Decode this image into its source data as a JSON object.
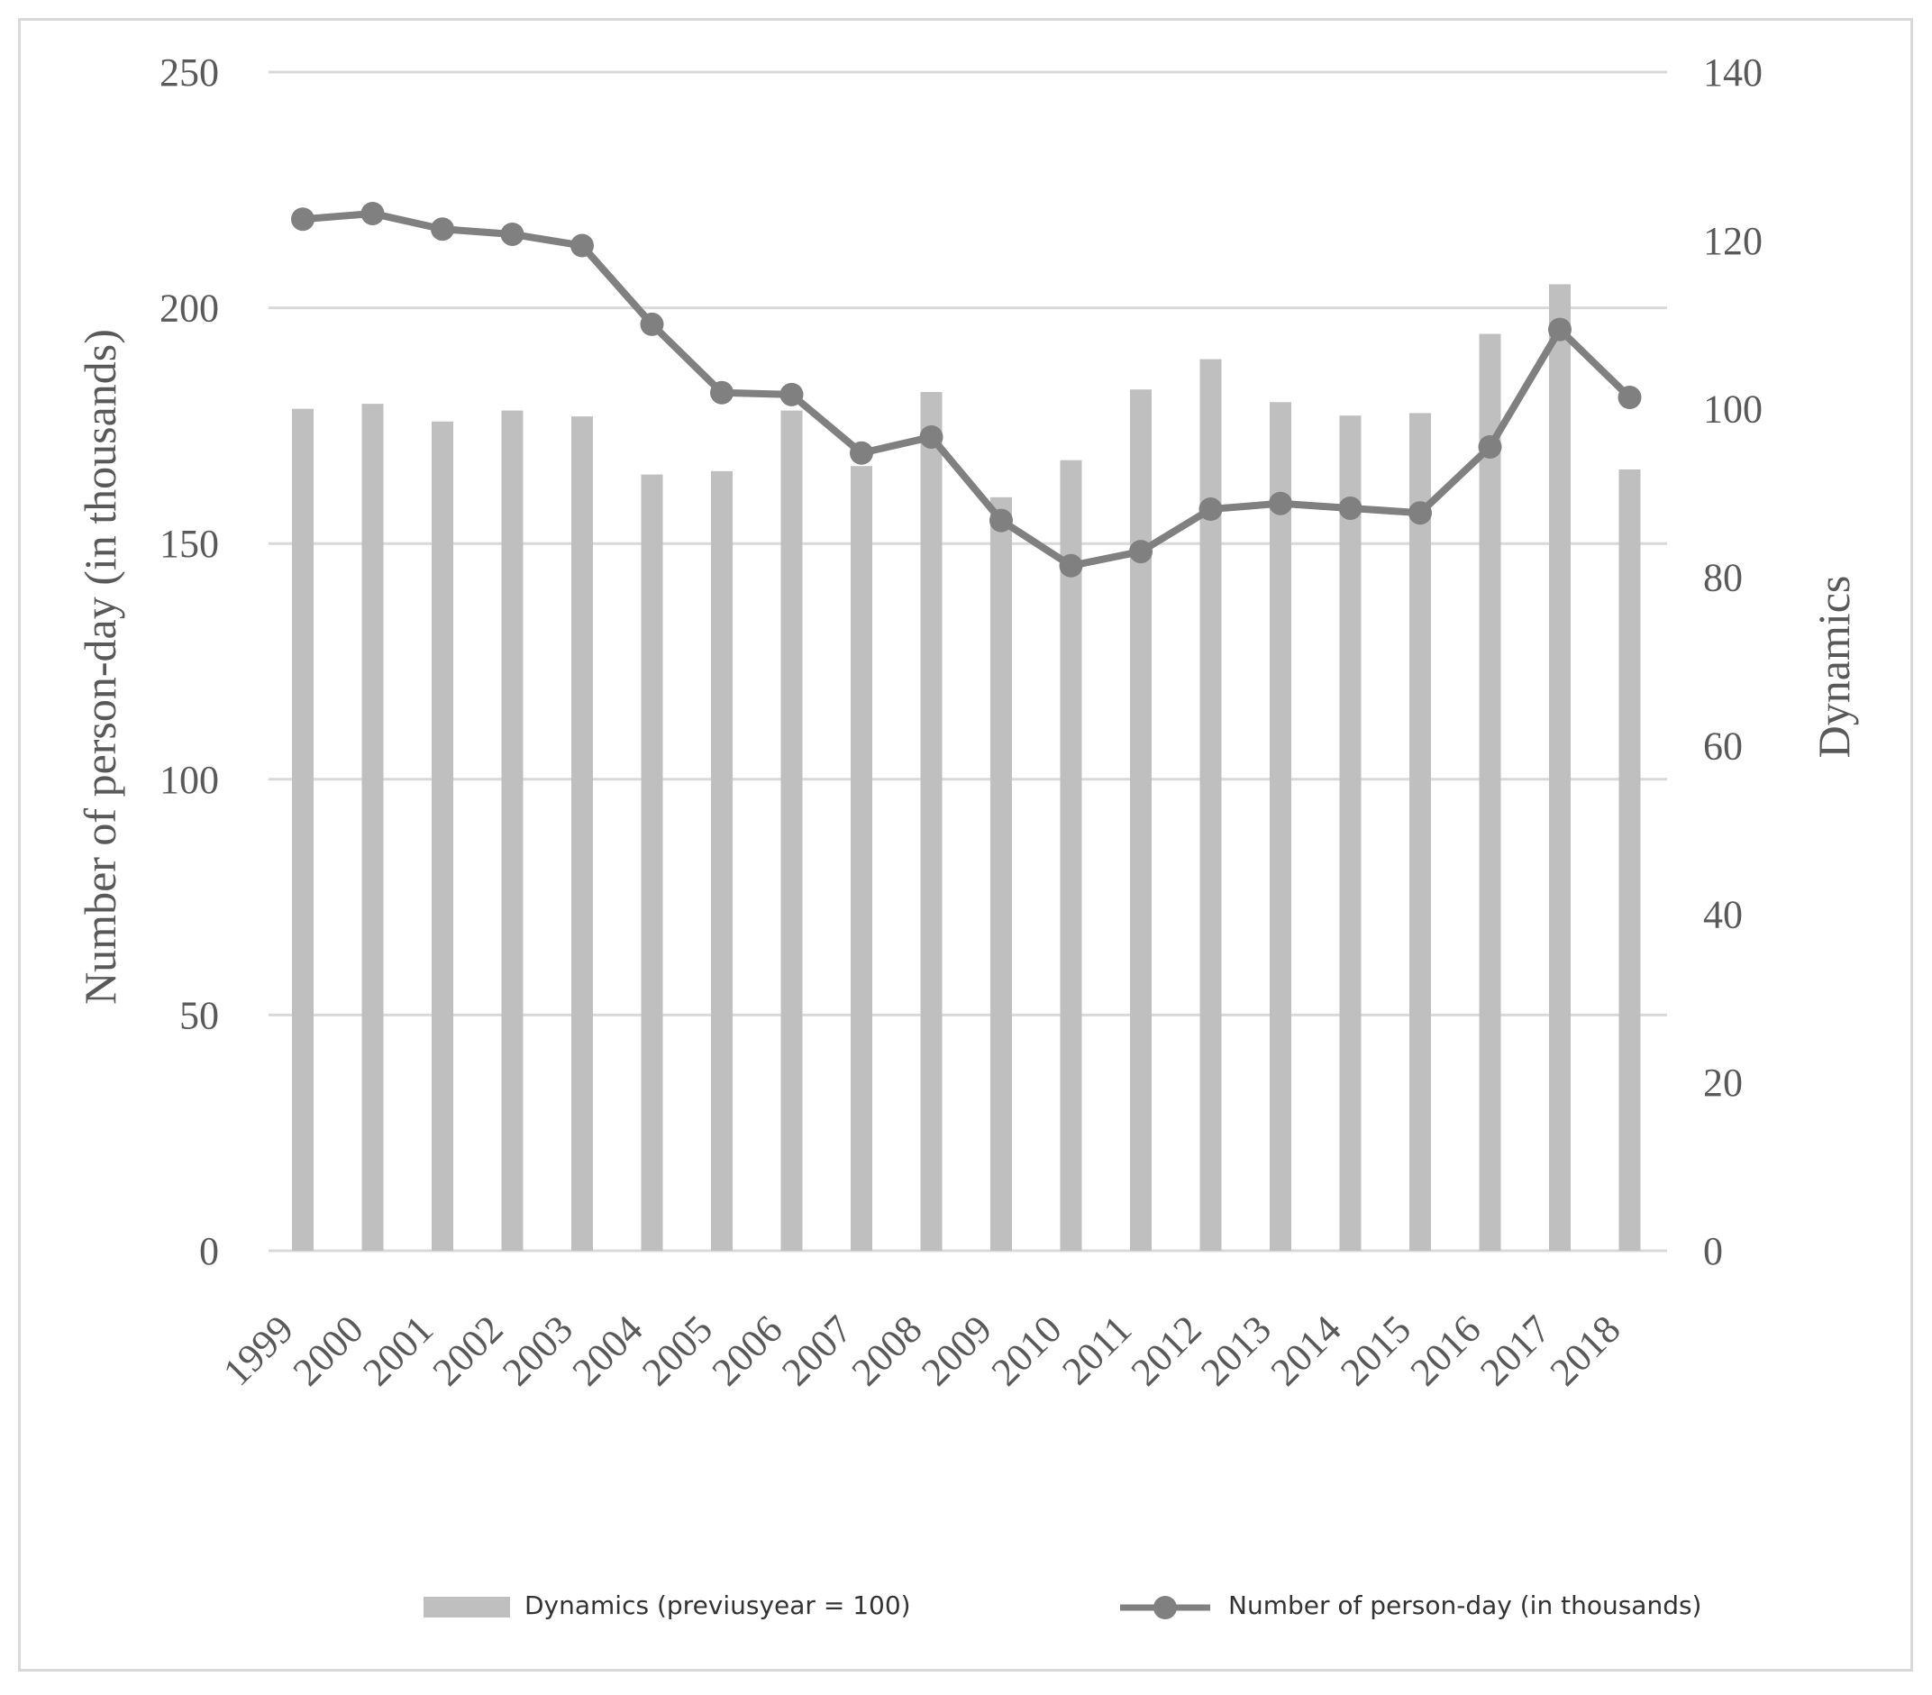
{
  "colors": {
    "bar": "#bfbfbf",
    "line": "#808080",
    "grid": "#d9d9d9",
    "text": "#595959"
  },
  "chart_data": {
    "type": "bar+line",
    "categories": [
      "1999",
      "2000",
      "2001",
      "2002",
      "2003",
      "2004",
      "2005",
      "2006",
      "2007",
      "2008",
      "2009",
      "2010",
      "2011",
      "2012",
      "2013",
      "2014",
      "2015",
      "2016",
      "2017",
      "2018"
    ],
    "series": [
      {
        "name": "Dynamics (previusyear = 100)",
        "type": "bar",
        "axis": "right",
        "values": [
          100.0,
          100.6,
          98.5,
          99.8,
          99.1,
          92.2,
          92.6,
          99.8,
          93.2,
          102.0,
          89.5,
          93.9,
          102.3,
          105.9,
          100.8,
          99.2,
          99.5,
          108.9,
          114.8,
          92.8
        ]
      },
      {
        "name": "Number of person-day (in thousands)",
        "type": "line",
        "axis": "left",
        "values": [
          218.8,
          220.0,
          216.7,
          215.6,
          213.2,
          196.5,
          182.0,
          181.6,
          169.2,
          172.6,
          154.9,
          145.3,
          148.3,
          157.3,
          158.5,
          157.5,
          156.5,
          170.5,
          195.4,
          181.0
        ]
      }
    ],
    "ylabel_left": "Number of person-day (in thousands)",
    "ylabel_right": "Dynamics",
    "ylim_left": [
      0,
      250
    ],
    "ylim_right": [
      0,
      140
    ],
    "yticks_left": [
      "0",
      "50",
      "100",
      "150",
      "200",
      "250"
    ],
    "yticks_right": [
      "0",
      "20",
      "40",
      "60",
      "80",
      "100",
      "120",
      "140"
    ],
    "grid": true,
    "legend_position": "bottom"
  }
}
